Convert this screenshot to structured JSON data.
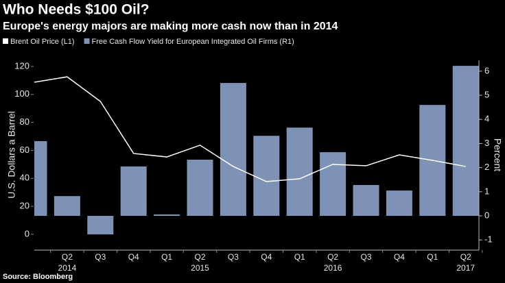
{
  "chart_data": {
    "type": "bar",
    "title": "Who Needs $100 Oil?",
    "subtitle": "Europe's energy majors are making more cash now than in 2014",
    "source": "Source: Bloomberg",
    "categories": [
      null,
      "Q2",
      "Q3",
      "Q4",
      "Q1",
      "Q2",
      "Q3",
      "Q4",
      "Q1",
      "Q2",
      "Q3",
      "Q4",
      "Q1",
      "Q2"
    ],
    "x_group_labels": [
      "2014",
      "2015",
      "2016",
      "2017"
    ],
    "y_label": "U.S. Dollars a Barrel",
    "y2_label": "Percent",
    "series": [
      {
        "name": "Brent Oil Price (L1)",
        "type": "line",
        "axis": "y",
        "color": "#ffffff",
        "values": [
          108.7,
          112.6,
          95,
          57.8,
          55.3,
          63.7,
          48.5,
          37.7,
          39.7,
          50,
          49,
          56.8,
          52.9,
          48.5
        ]
      },
      {
        "name": "Free Cash Flow Yield for European Integrated Oil Firms (R1)",
        "type": "bar",
        "axis": "y2",
        "color": "#7d92b5",
        "values": [
          3.1,
          0.82,
          -0.77,
          2.05,
          0.06,
          2.33,
          5.51,
          3.32,
          3.66,
          2.64,
          1.28,
          1.05,
          4.6,
          6.22
        ]
      }
    ],
    "ylim": [
      -11.3,
      124.4
    ],
    "yticks": [
      0,
      20,
      40,
      60,
      80,
      100,
      120
    ],
    "y2lim": [
      -1.42,
      6.45
    ],
    "y2ticks": [
      -1,
      0,
      1,
      2,
      3,
      4,
      5,
      6
    ],
    "grid": false
  }
}
